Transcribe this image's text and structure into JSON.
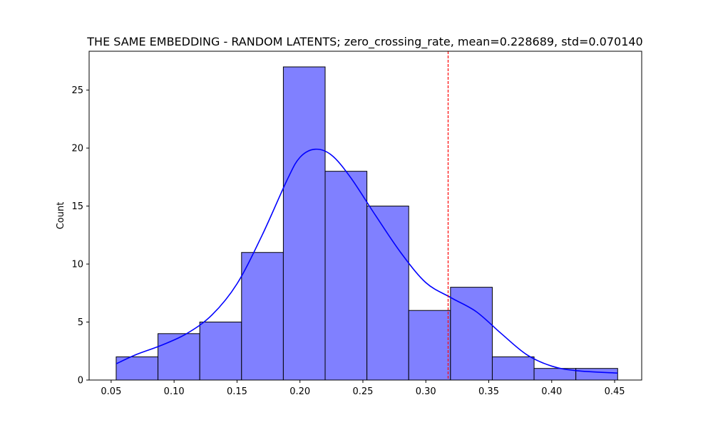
{
  "chart_data": {
    "type": "bar",
    "title": "THE SAME EMBEDDING - RANDOM LATENTS; zero_crossing_rate, mean=0.228689, std=0.070140",
    "xlabel": "",
    "ylabel": "Count",
    "xlim": [
      0.0325,
      0.4715
    ],
    "ylim": [
      0,
      28.35
    ],
    "xticks": [
      0.05,
      0.1,
      0.15,
      0.2,
      0.25,
      0.3,
      0.35,
      0.4,
      0.45
    ],
    "xtick_labels": [
      "0.05",
      "0.10",
      "0.15",
      "0.20",
      "0.25",
      "0.30",
      "0.35",
      "0.40",
      "0.45"
    ],
    "yticks": [
      0,
      5,
      10,
      15,
      20,
      25
    ],
    "ytick_labels": [
      "0",
      "5",
      "10",
      "15",
      "20",
      "25"
    ],
    "bins": {
      "edges": [
        0.054,
        0.0872,
        0.1204,
        0.1536,
        0.1868,
        0.22,
        0.2532,
        0.2864,
        0.3196,
        0.3528,
        0.386,
        0.4192,
        0.4524
      ],
      "counts": [
        2,
        4,
        5,
        11,
        27,
        18,
        15,
        6,
        8,
        2,
        1,
        1
      ]
    },
    "kde": {
      "x": [
        0.054,
        0.07,
        0.09,
        0.11,
        0.13,
        0.15,
        0.17,
        0.19,
        0.2,
        0.212,
        0.225,
        0.24,
        0.26,
        0.28,
        0.3,
        0.32,
        0.34,
        0.36,
        0.38,
        0.4,
        0.42,
        0.4524
      ],
      "y": [
        1.4,
        2.2,
        3.0,
        4.0,
        5.6,
        8.3,
        12.5,
        17.3,
        19.2,
        19.9,
        19.4,
        17.5,
        14.2,
        11.0,
        8.4,
        7.1,
        5.9,
        4.0,
        2.2,
        1.2,
        0.8,
        0.6
      ]
    },
    "vline": {
      "x": 0.3177,
      "color": "#ff0000",
      "style": "dashed"
    },
    "colors": {
      "bar_fill": "#8080ff",
      "bar_edge": "#000000",
      "kde": "#0000ff"
    },
    "grid": false,
    "legend": "none"
  }
}
